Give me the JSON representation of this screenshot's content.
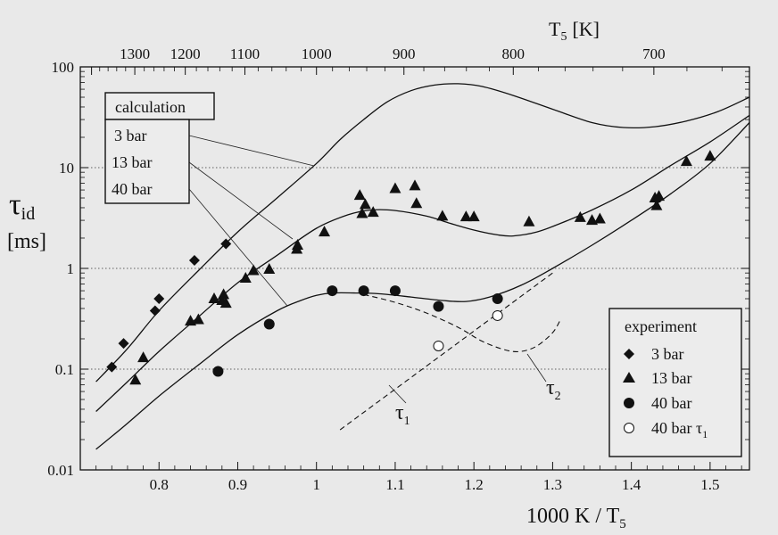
{
  "chart_data": {
    "type": "scatter",
    "xlabel": "1000 K / T",
    "xlabel_sub": "5",
    "ylabel": "τ",
    "ylabel_sub": "id",
    "ylabel_unit": "[ms]",
    "x2label": "T",
    "x2label_sub": "5",
    "x2label_unit": "[K]",
    "xlim": [
      0.7,
      1.55
    ],
    "ylim": [
      0.01,
      100
    ],
    "yscale": "log",
    "grid": "horizontal dotted at 0.1, 1, 10",
    "x_ticks": [
      0.8,
      0.9,
      1.0,
      1.1,
      1.2,
      1.3,
      1.4,
      1.5
    ],
    "x_tick_labels": [
      "0.8",
      "0.9",
      "1",
      "1.1",
      "1.2",
      "1.3",
      "1.4",
      "1.5"
    ],
    "y_ticks": [
      0.01,
      0.1,
      1,
      10,
      100
    ],
    "y_tick_labels": [
      "0.01",
      "0.1",
      "1",
      "10",
      "100"
    ],
    "top_ticks_K": [
      1300,
      1200,
      1100,
      1000,
      900,
      800,
      700
    ],
    "top_tick_labels": [
      "1300",
      "1200",
      "1100",
      "1000",
      "900",
      "800",
      "700"
    ],
    "legend_calc": {
      "title": "calculation",
      "entries": [
        "3 bar",
        "13 bar",
        "40 bar"
      ]
    },
    "legend_exp": {
      "title": "experiment",
      "entries": [
        "3  bar",
        "13 bar",
        "40 bar",
        "40 bar  τ"
      ],
      "tau_sub": "1"
    },
    "annotations": {
      "tau1": "τ",
      "tau1_sub": "1",
      "tau2": "τ",
      "tau2_sub": "2"
    },
    "calc_curves": [
      {
        "name": "3 bar",
        "points": [
          [
            0.72,
            0.075
          ],
          [
            0.76,
            0.16
          ],
          [
            0.8,
            0.38
          ],
          [
            0.85,
            0.95
          ],
          [
            0.9,
            2.3
          ],
          [
            0.95,
            5.0
          ],
          [
            1.0,
            11.0
          ],
          [
            1.03,
            19
          ],
          [
            1.06,
            30
          ],
          [
            1.09,
            45
          ],
          [
            1.12,
            58
          ],
          [
            1.15,
            66
          ],
          [
            1.18,
            68
          ],
          [
            1.21,
            64
          ],
          [
            1.25,
            52
          ],
          [
            1.3,
            38
          ],
          [
            1.35,
            28
          ],
          [
            1.39,
            25
          ],
          [
            1.43,
            25.5
          ],
          [
            1.47,
            29
          ],
          [
            1.51,
            36
          ],
          [
            1.55,
            50
          ]
        ]
      },
      {
        "name": "13 bar",
        "points": [
          [
            0.72,
            0.038
          ],
          [
            0.76,
            0.075
          ],
          [
            0.8,
            0.15
          ],
          [
            0.85,
            0.33
          ],
          [
            0.9,
            0.72
          ],
          [
            0.95,
            1.35
          ],
          [
            1.0,
            2.5
          ],
          [
            1.04,
            3.4
          ],
          [
            1.07,
            3.8
          ],
          [
            1.1,
            3.75
          ],
          [
            1.14,
            3.3
          ],
          [
            1.17,
            2.8
          ],
          [
            1.2,
            2.4
          ],
          [
            1.23,
            2.15
          ],
          [
            1.25,
            2.1
          ],
          [
            1.28,
            2.3
          ],
          [
            1.31,
            2.8
          ],
          [
            1.35,
            3.8
          ],
          [
            1.4,
            6.0
          ],
          [
            1.45,
            10.5
          ],
          [
            1.5,
            18
          ],
          [
            1.55,
            33
          ]
        ]
      },
      {
        "name": "40 bar",
        "points": [
          [
            0.72,
            0.016
          ],
          [
            0.76,
            0.029
          ],
          [
            0.8,
            0.054
          ],
          [
            0.85,
            0.11
          ],
          [
            0.9,
            0.22
          ],
          [
            0.95,
            0.38
          ],
          [
            0.98,
            0.48
          ],
          [
            1.0,
            0.54
          ],
          [
            1.02,
            0.57
          ],
          [
            1.05,
            0.57
          ],
          [
            1.08,
            0.56
          ],
          [
            1.12,
            0.52
          ],
          [
            1.16,
            0.48
          ],
          [
            1.19,
            0.47
          ],
          [
            1.22,
            0.52
          ],
          [
            1.26,
            0.68
          ],
          [
            1.3,
            1.0
          ],
          [
            1.35,
            1.7
          ],
          [
            1.4,
            3.0
          ],
          [
            1.45,
            5.5
          ],
          [
            1.5,
            11
          ],
          [
            1.55,
            28
          ]
        ]
      }
    ],
    "tau2_curve": [
      [
        1.06,
        0.55
      ],
      [
        1.1,
        0.46
      ],
      [
        1.14,
        0.36
      ],
      [
        1.18,
        0.26
      ],
      [
        1.21,
        0.19
      ],
      [
        1.24,
        0.155
      ],
      [
        1.26,
        0.15
      ],
      [
        1.28,
        0.17
      ],
      [
        1.3,
        0.23
      ],
      [
        1.31,
        0.31
      ]
    ],
    "tau1_line": [
      [
        1.03,
        0.025
      ],
      [
        1.3,
        0.9
      ]
    ],
    "experiment": [
      {
        "name": "3 bar",
        "marker": "diamond",
        "points": [
          [
            0.74,
            0.105
          ],
          [
            0.755,
            0.18
          ],
          [
            0.795,
            0.38
          ],
          [
            0.8,
            0.5
          ],
          [
            0.845,
            1.2
          ],
          [
            0.885,
            1.75
          ]
        ]
      },
      {
        "name": "13 bar",
        "marker": "triangle",
        "points": [
          [
            0.77,
            0.078
          ],
          [
            0.78,
            0.13
          ],
          [
            0.84,
            0.3
          ],
          [
            0.85,
            0.31
          ],
          [
            0.87,
            0.5
          ],
          [
            0.88,
            0.48
          ],
          [
            0.882,
            0.55
          ],
          [
            0.885,
            0.45
          ],
          [
            0.91,
            0.8
          ],
          [
            0.92,
            0.95
          ],
          [
            0.94,
            0.98
          ],
          [
            0.975,
            1.55
          ],
          [
            0.976,
            1.7
          ],
          [
            1.01,
            2.3
          ],
          [
            1.055,
            5.3
          ],
          [
            1.058,
            3.5
          ],
          [
            1.062,
            4.3
          ],
          [
            1.072,
            3.6
          ],
          [
            1.1,
            6.2
          ],
          [
            1.125,
            6.6
          ],
          [
            1.127,
            4.4
          ],
          [
            1.16,
            3.3
          ],
          [
            1.19,
            3.25
          ],
          [
            1.2,
            3.25
          ],
          [
            1.27,
            2.9
          ],
          [
            1.335,
            3.2
          ],
          [
            1.35,
            3.0
          ],
          [
            1.36,
            3.1
          ],
          [
            1.43,
            5.0
          ],
          [
            1.432,
            4.2
          ],
          [
            1.435,
            5.2
          ],
          [
            1.47,
            11.5
          ],
          [
            1.5,
            13.0
          ]
        ]
      },
      {
        "name": "40 bar",
        "marker": "circle-filled",
        "points": [
          [
            0.875,
            0.095
          ],
          [
            0.94,
            0.28
          ],
          [
            1.02,
            0.6
          ],
          [
            1.06,
            0.6
          ],
          [
            1.1,
            0.6
          ],
          [
            1.155,
            0.42
          ],
          [
            1.23,
            0.5
          ]
        ]
      },
      {
        "name": "40 bar τ1",
        "marker": "circle-open",
        "points": [
          [
            1.155,
            0.17
          ],
          [
            1.23,
            0.34
          ]
        ]
      }
    ]
  }
}
